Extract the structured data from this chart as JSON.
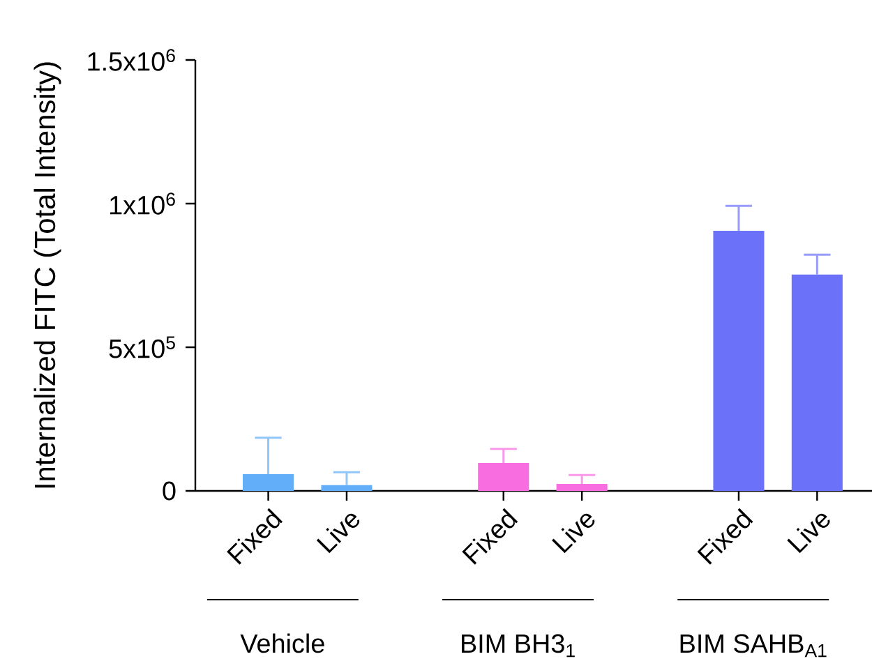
{
  "chart_data": {
    "type": "bar",
    "ylabel": "Internalized FITC (Total Intensity)",
    "categories": [
      "Fixed",
      "Live",
      null,
      "Fixed",
      "Live",
      null,
      "Fixed",
      "Live"
    ],
    "values": [
      58000,
      20000,
      null,
      97000,
      24000,
      null,
      905000,
      753000
    ],
    "errors": [
      [
        58000,
        185000
      ],
      [
        20000,
        65000
      ],
      null,
      [
        97000,
        146000
      ],
      [
        24000,
        55000
      ],
      null,
      [
        905000,
        992000
      ],
      [
        753000,
        822000
      ]
    ],
    "colors": [
      "#62aef9",
      "#62aef9",
      null,
      "#f86ddf",
      "#f86ddf",
      null,
      "#6b72f9",
      "#6b72f9"
    ],
    "ylim": [
      0,
      1500000
    ],
    "yticks": [
      {
        "value": 0,
        "label": "0"
      },
      {
        "value": 500000,
        "label": "5x10$^{5}$"
      },
      {
        "value": 1000000,
        "label": "1x10$^{6}$"
      },
      {
        "value": 1500000,
        "label": "1.5x10$^{6}$"
      }
    ],
    "annotations": [
      "Vehicle",
      "BIM BH3$_{1}$",
      "BIM SAHB$_{A1}$"
    ],
    "grid": false
  }
}
